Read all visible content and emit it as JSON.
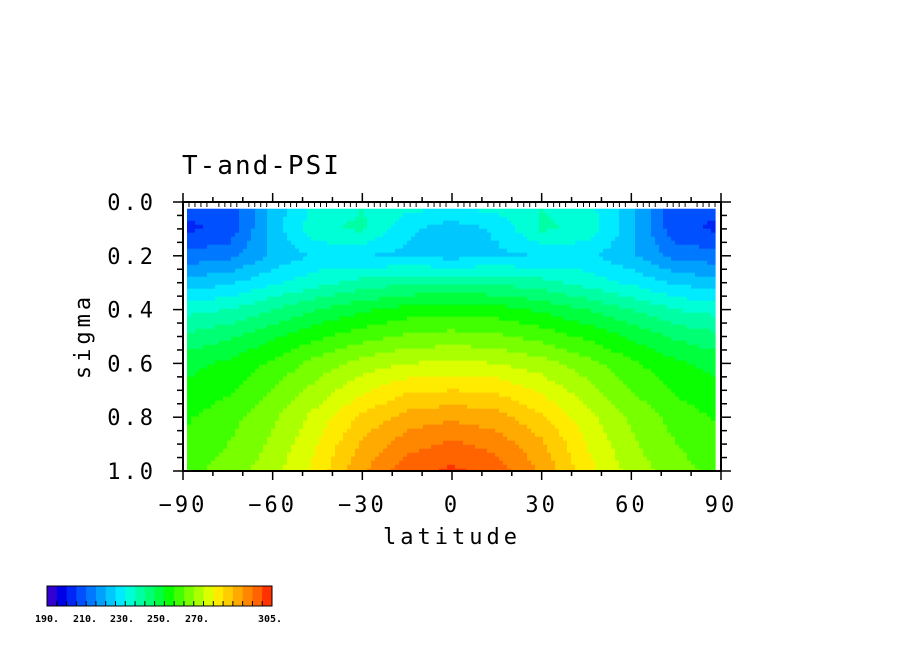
{
  "chart_data": {
    "type": "heatmap",
    "title": "T-and-PSI",
    "xlabel": "latitude",
    "ylabel": "sigma",
    "xlim": [
      -90,
      90
    ],
    "ylim": [
      1.0,
      0.0
    ],
    "y_axis_inverted": true,
    "x_ticks": [
      "−90",
      "−60",
      "−30",
      "0",
      "30",
      "60",
      "90"
    ],
    "y_ticks": [
      "0.0",
      "0.2",
      "0.4",
      "0.6",
      "0.8",
      "1.0"
    ],
    "grid": false,
    "colorbar": {
      "min": 190,
      "max": 305,
      "step": 5,
      "tick_labels": [
        "190.",
        "210.",
        "230.",
        "250.",
        "270.",
        "305."
      ],
      "colors": [
        "#3300d2",
        "#0000e6",
        "#0026f5",
        "#0050ff",
        "#0078ff",
        "#00a0ff",
        "#00c8ff",
        "#00ebff",
        "#00ffd7",
        "#00ffa5",
        "#00ff73",
        "#00ff3c",
        "#0aff00",
        "#41ff00",
        "#78ff00",
        "#aaff00",
        "#dcff00",
        "#ffeb00",
        "#ffcd00",
        "#ffaa00",
        "#ff8700",
        "#ff6400",
        "#ff3200"
      ]
    },
    "lat": [
      -90,
      -75,
      -60,
      -45,
      -30,
      -15,
      0,
      15,
      30,
      45,
      60,
      75,
      90
    ],
    "sigma": [
      0.025,
      0.1,
      0.2,
      0.3,
      0.4,
      0.5,
      0.6,
      0.7,
      0.8,
      0.9,
      1.0
    ],
    "values": [
      [
        206,
        206,
        222,
        232,
        235,
        231,
        230,
        231,
        235,
        232,
        222,
        206,
        206
      ],
      [
        204,
        206,
        222,
        234,
        236,
        226,
        222,
        226,
        236,
        234,
        222,
        206,
        204
      ],
      [
        212,
        213,
        221,
        226,
        225,
        224,
        223,
        224,
        225,
        226,
        221,
        213,
        212
      ],
      [
        222,
        224,
        229,
        233,
        237,
        239,
        240,
        239,
        237,
        233,
        229,
        224,
        222
      ],
      [
        233,
        235,
        240,
        245,
        249,
        252,
        253,
        252,
        249,
        245,
        240,
        235,
        233
      ],
      [
        241,
        244,
        249,
        254,
        258,
        261,
        262,
        261,
        258,
        254,
        249,
        244,
        241
      ],
      [
        248,
        251,
        256,
        262,
        267,
        270,
        271,
        270,
        267,
        262,
        256,
        251,
        248
      ],
      [
        251,
        254,
        260,
        267,
        274,
        279,
        280,
        279,
        274,
        267,
        260,
        254,
        251
      ],
      [
        254,
        258,
        264,
        272,
        281,
        287,
        289,
        287,
        281,
        272,
        264,
        258,
        254
      ],
      [
        256,
        260,
        266,
        275,
        286,
        293,
        296,
        293,
        286,
        275,
        266,
        260,
        256
      ],
      [
        258,
        262,
        268,
        277,
        289,
        298,
        301,
        298,
        289,
        277,
        268,
        262,
        258
      ]
    ]
  }
}
